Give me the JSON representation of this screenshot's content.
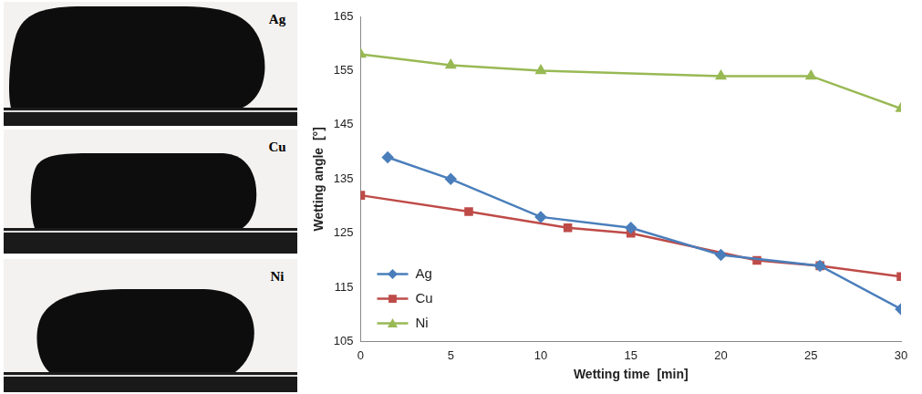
{
  "photos": {
    "labels": [
      "Ag",
      "Cu",
      "Ni"
    ]
  },
  "chart_data": {
    "type": "line",
    "x_label": "Wetting time  [min]",
    "y_label": "Wetting angle  [°]",
    "xlim": [
      0,
      30
    ],
    "xticks": [
      0,
      5,
      10,
      15,
      20,
      25,
      30
    ],
    "ylim": [
      105,
      165
    ],
    "yticks": [
      105,
      115,
      125,
      135,
      145,
      155,
      165
    ],
    "grid": false,
    "legend": "lower-left",
    "series": [
      {
        "name": "Ag",
        "color": "#4a7ebb",
        "marker": "diamond",
        "x": [
          1.5,
          5,
          10,
          15,
          20,
          25.5,
          30
        ],
        "values": [
          139,
          135,
          128,
          126,
          121,
          119,
          111
        ]
      },
      {
        "name": "Cu",
        "color": "#be4b48",
        "marker": "square",
        "x": [
          0,
          6,
          11.5,
          15,
          22,
          25.5,
          30
        ],
        "values": [
          132,
          129,
          126,
          125,
          120,
          119,
          117
        ]
      },
      {
        "name": "Ni",
        "color": "#98b954",
        "marker": "triangle",
        "x": [
          0,
          5,
          10,
          20,
          25,
          30
        ],
        "values": [
          158,
          156,
          155,
          154,
          154,
          148
        ]
      }
    ]
  }
}
